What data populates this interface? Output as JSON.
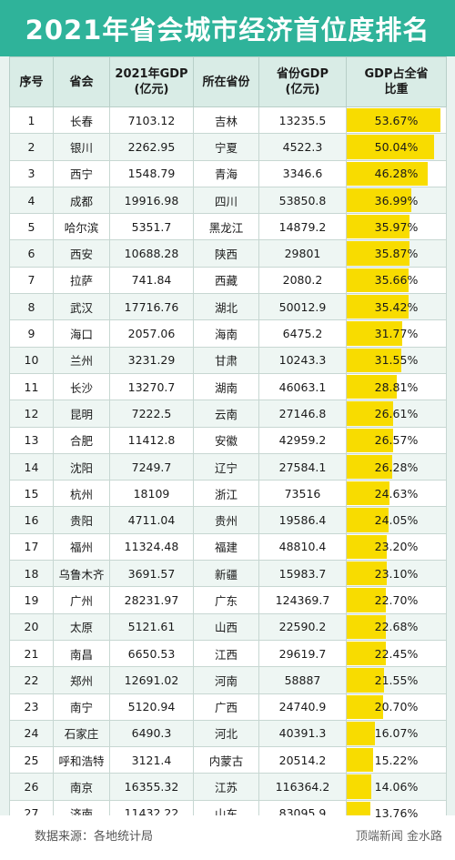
{
  "title": "2021年省会城市经济首位度排名",
  "headers": {
    "rank": "序号",
    "city": "省会",
    "gdp_line1": "2021年GDP",
    "gdp_line2": "(亿元)",
    "province": "所在省份",
    "prov_gdp_line1": "省份GDP",
    "prov_gdp_line2": "(亿元)",
    "share_line1": "GDP占全省",
    "share_line2": "比重"
  },
  "rows": [
    {
      "rank": "1",
      "city": "长春",
      "gdp": "7103.12",
      "province": "吉林",
      "prov_gdp": "13235.5",
      "share": "53.67%"
    },
    {
      "rank": "2",
      "city": "银川",
      "gdp": "2262.95",
      "province": "宁夏",
      "prov_gdp": "4522.3",
      "share": "50.04%"
    },
    {
      "rank": "3",
      "city": "西宁",
      "gdp": "1548.79",
      "province": "青海",
      "prov_gdp": "3346.6",
      "share": "46.28%"
    },
    {
      "rank": "4",
      "city": "成都",
      "gdp": "19916.98",
      "province": "四川",
      "prov_gdp": "53850.8",
      "share": "36.99%"
    },
    {
      "rank": "5",
      "city": "哈尔滨",
      "gdp": "5351.7",
      "province": "黑龙江",
      "prov_gdp": "14879.2",
      "share": "35.97%"
    },
    {
      "rank": "6",
      "city": "西安",
      "gdp": "10688.28",
      "province": "陕西",
      "prov_gdp": "29801",
      "share": "35.87%"
    },
    {
      "rank": "7",
      "city": "拉萨",
      "gdp": "741.84",
      "province": "西藏",
      "prov_gdp": "2080.2",
      "share": "35.66%"
    },
    {
      "rank": "8",
      "city": "武汉",
      "gdp": "17716.76",
      "province": "湖北",
      "prov_gdp": "50012.9",
      "share": "35.42%"
    },
    {
      "rank": "9",
      "city": "海口",
      "gdp": "2057.06",
      "province": "海南",
      "prov_gdp": "6475.2",
      "share": "31.77%"
    },
    {
      "rank": "10",
      "city": "兰州",
      "gdp": "3231.29",
      "province": "甘肃",
      "prov_gdp": "10243.3",
      "share": "31.55%"
    },
    {
      "rank": "11",
      "city": "长沙",
      "gdp": "13270.7",
      "province": "湖南",
      "prov_gdp": "46063.1",
      "share": "28.81%"
    },
    {
      "rank": "12",
      "city": "昆明",
      "gdp": "7222.5",
      "province": "云南",
      "prov_gdp": "27146.8",
      "share": "26.61%"
    },
    {
      "rank": "13",
      "city": "合肥",
      "gdp": "11412.8",
      "province": "安徽",
      "prov_gdp": "42959.2",
      "share": "26.57%"
    },
    {
      "rank": "14",
      "city": "沈阳",
      "gdp": "7249.7",
      "province": "辽宁",
      "prov_gdp": "27584.1",
      "share": "26.28%"
    },
    {
      "rank": "15",
      "city": "杭州",
      "gdp": "18109",
      "province": "浙江",
      "prov_gdp": "73516",
      "share": "24.63%"
    },
    {
      "rank": "16",
      "city": "贵阳",
      "gdp": "4711.04",
      "province": "贵州",
      "prov_gdp": "19586.4",
      "share": "24.05%"
    },
    {
      "rank": "17",
      "city": "福州",
      "gdp": "11324.48",
      "province": "福建",
      "prov_gdp": "48810.4",
      "share": "23.20%"
    },
    {
      "rank": "18",
      "city": "乌鲁木齐",
      "gdp": "3691.57",
      "province": "新疆",
      "prov_gdp": "15983.7",
      "share": "23.10%"
    },
    {
      "rank": "19",
      "city": "广州",
      "gdp": "28231.97",
      "province": "广东",
      "prov_gdp": "124369.7",
      "share": "22.70%"
    },
    {
      "rank": "20",
      "city": "太原",
      "gdp": "5121.61",
      "province": "山西",
      "prov_gdp": "22590.2",
      "share": "22.68%"
    },
    {
      "rank": "21",
      "city": "南昌",
      "gdp": "6650.53",
      "province": "江西",
      "prov_gdp": "29619.7",
      "share": "22.45%"
    },
    {
      "rank": "22",
      "city": "郑州",
      "gdp": "12691.02",
      "province": "河南",
      "prov_gdp": "58887",
      "share": "21.55%"
    },
    {
      "rank": "23",
      "city": "南宁",
      "gdp": "5120.94",
      "province": "广西",
      "prov_gdp": "24740.9",
      "share": "20.70%"
    },
    {
      "rank": "24",
      "city": "石家庄",
      "gdp": "6490.3",
      "province": "河北",
      "prov_gdp": "40391.3",
      "share": "16.07%"
    },
    {
      "rank": "25",
      "city": "呼和浩特",
      "gdp": "3121.4",
      "province": "内蒙古",
      "prov_gdp": "20514.2",
      "share": "15.22%"
    },
    {
      "rank": "26",
      "city": "南京",
      "gdp": "16355.32",
      "province": "江苏",
      "prov_gdp": "116364.2",
      "share": "14.06%"
    },
    {
      "rank": "27",
      "city": "济南",
      "gdp": "11432.22",
      "province": "山东",
      "prov_gdp": "83095.9",
      "share": "13.76%"
    }
  ],
  "source": "数据来源：各地统计局",
  "credit": "顶端新闻 金水路",
  "chart_data": {
    "type": "table",
    "title": "2021年省会城市经济首位度排名",
    "columns": [
      "序号",
      "省会",
      "2021年GDP(亿元)",
      "所在省份",
      "省份GDP(亿元)",
      "GDP占全省比重"
    ],
    "bar_column": "GDP占全省比重",
    "bar_color": "#f8dc00",
    "bar_max_percent": 57
  }
}
